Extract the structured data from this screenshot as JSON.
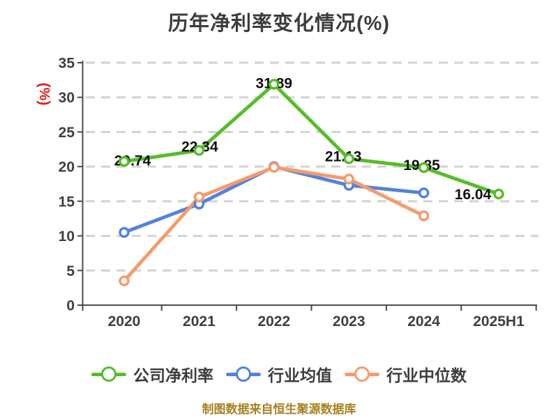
{
  "chart_data": {
    "type": "line",
    "title": "历年净利率变化情况(%)",
    "y_axis_unit": "(%)",
    "categories": [
      "2020",
      "2021",
      "2022",
      "2023",
      "2024",
      "2025H1"
    ],
    "series": [
      {
        "name": "公司净利率",
        "color": "#55bd28",
        "values": [
          20.74,
          22.34,
          31.89,
          21.13,
          19.85,
          16.04
        ],
        "data_labels": true
      },
      {
        "name": "行业均值",
        "color": "#5282dd",
        "values": [
          10.5,
          14.6,
          20.0,
          17.3,
          16.2,
          null
        ],
        "data_labels": false
      },
      {
        "name": "行业中位数",
        "color": "#f59b6c",
        "values": [
          3.5,
          15.6,
          19.9,
          18.2,
          12.9,
          null
        ],
        "data_labels": false
      }
    ],
    "ylim": [
      0,
      35
    ],
    "y_ticks": [
      0,
      5,
      10,
      15,
      20,
      25,
      30,
      35
    ],
    "grid": "dashed-horizontal",
    "legend_position": "bottom",
    "footer": "制图数据来自恒生聚源数据库",
    "styles": {
      "title_color": "#3c3c3c",
      "axis_color": "#4a4a4a",
      "grid_color": "#d2d2d2",
      "tick_label_color": "#3f3f3f",
      "data_label_color": "#111111",
      "unit_label_color": "#e11f1f",
      "footer_color": "#a8801f",
      "marker_fill": "#ffffff"
    }
  }
}
